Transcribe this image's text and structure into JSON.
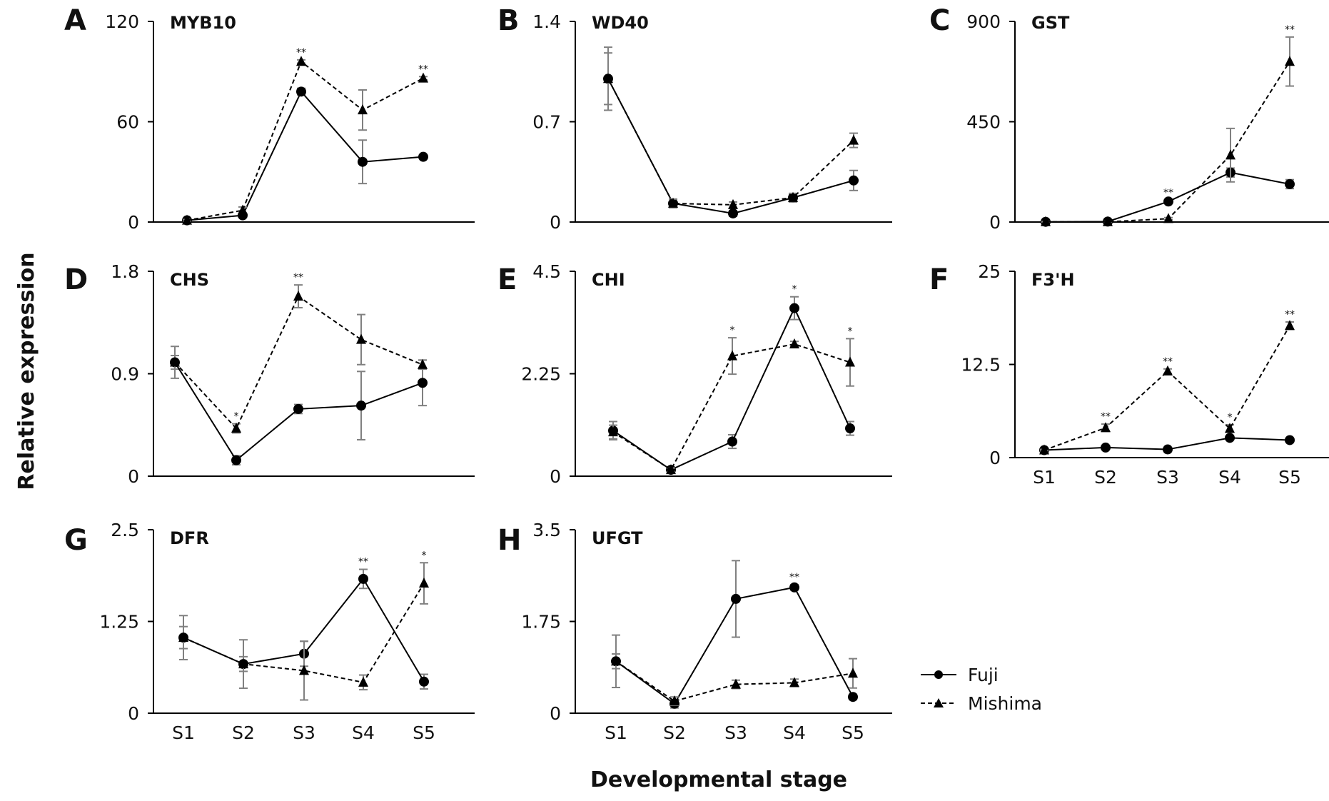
{
  "figure": {
    "ylabel": "Relative expression",
    "xlabel": "Developmental stage",
    "legend": [
      {
        "name": "Fuji",
        "marker": "circle",
        "line": "solid"
      },
      {
        "name": "Mishima",
        "marker": "triangle",
        "line": "dashed"
      }
    ],
    "colors": {
      "line": "#000000",
      "error_bar": "#808080",
      "text": "#111111"
    }
  },
  "chart_data": [
    {
      "panel": "A",
      "title": "MYB10",
      "type": "line",
      "categories": [
        "S1",
        "S2",
        "S3",
        "S4",
        "S5"
      ],
      "show_x_ticks": false,
      "yticks": [
        "0",
        "60",
        "120"
      ],
      "ylim": [
        0,
        120
      ],
      "series": [
        {
          "name": "Fuji",
          "values": [
            1,
            4,
            78,
            36,
            39
          ],
          "errors": [
            0.5,
            1,
            2,
            13,
            1
          ]
        },
        {
          "name": "Mishima",
          "values": [
            1,
            7,
            96,
            67,
            86
          ],
          "errors": [
            0.5,
            2,
            1,
            12,
            1
          ]
        }
      ],
      "significance": [
        "",
        "",
        "**",
        "",
        "**"
      ]
    },
    {
      "panel": "B",
      "title": "WD40",
      "type": "line",
      "categories": [
        "S1",
        "S2",
        "S3",
        "S4",
        "S5"
      ],
      "show_x_ticks": false,
      "yticks": [
        "0",
        "0.7",
        "1.4"
      ],
      "ylim": [
        0,
        1.4
      ],
      "series": [
        {
          "name": "Fuji",
          "values": [
            1.0,
            0.13,
            0.06,
            0.17,
            0.29
          ],
          "errors": [
            0.18,
            0.03,
            0.02,
            0.02,
            0.07
          ]
        },
        {
          "name": "Mishima",
          "values": [
            1.0,
            0.13,
            0.12,
            0.17,
            0.57
          ],
          "errors": [
            0.22,
            0.03,
            0.02,
            0.03,
            0.05
          ]
        }
      ],
      "significance": [
        "",
        "",
        "",
        "",
        ""
      ]
    },
    {
      "panel": "C",
      "title": "GST",
      "type": "line",
      "categories": [
        "S1",
        "S2",
        "S3",
        "S4",
        "S5"
      ],
      "show_x_ticks": false,
      "yticks": [
        "0",
        "450",
        "900"
      ],
      "ylim": [
        0,
        900
      ],
      "series": [
        {
          "name": "Fuji",
          "values": [
            1,
            2,
            92,
            222,
            170
          ],
          "errors": [
            1,
            1,
            5,
            20,
            20
          ]
        },
        {
          "name": "Mishima",
          "values": [
            1,
            1,
            15,
            300,
            720
          ],
          "errors": [
            1,
            1,
            5,
            120,
            110
          ]
        }
      ],
      "significance": [
        "",
        "",
        "**",
        "",
        "**"
      ]
    },
    {
      "panel": "D",
      "title": "CHS",
      "type": "line",
      "categories": [
        "S1",
        "S2",
        "S3",
        "S4",
        "S5"
      ],
      "show_x_ticks": false,
      "yticks": [
        "0",
        "0.9",
        "1.8"
      ],
      "ylim": [
        0,
        1.8
      ],
      "series": [
        {
          "name": "Fuji",
          "values": [
            1.0,
            0.14,
            0.59,
            0.62,
            0.82
          ],
          "errors": [
            0.06,
            0.04,
            0.04,
            0.3,
            0.2
          ]
        },
        {
          "name": "Mishima",
          "values": [
            1.0,
            0.42,
            1.58,
            1.2,
            0.98
          ],
          "errors": [
            0.14,
            0.04,
            0.1,
            0.22,
            0.04
          ]
        }
      ],
      "significance": [
        "",
        "*",
        "**",
        "",
        ""
      ]
    },
    {
      "panel": "E",
      "title": "CHI",
      "type": "line",
      "categories": [
        "S1",
        "S2",
        "S3",
        "S4",
        "S5"
      ],
      "show_x_ticks": false,
      "yticks": [
        "0",
        "2.25",
        "4.5"
      ],
      "ylim": [
        0,
        4.5
      ],
      "series": [
        {
          "name": "Fuji",
          "values": [
            1.0,
            0.14,
            0.76,
            3.69,
            1.05
          ],
          "errors": [
            0.2,
            0.04,
            0.15,
            0.25,
            0.15
          ]
        },
        {
          "name": "Mishima",
          "values": [
            0.97,
            0.14,
            2.64,
            2.9,
            2.5
          ],
          "errors": [
            0.15,
            0.04,
            0.4,
            0.06,
            0.52
          ]
        }
      ],
      "significance": [
        "",
        "",
        "*",
        "*",
        "*"
      ]
    },
    {
      "panel": "F",
      "title": "F3'H",
      "type": "line",
      "categories": [
        "S1",
        "S2",
        "S3",
        "S4",
        "S5"
      ],
      "show_x_ticks": true,
      "yticks": [
        "0",
        "12.5",
        "25"
      ],
      "ylim": [
        0,
        25
      ],
      "series": [
        {
          "name": "Fuji",
          "values": [
            1.0,
            1.35,
            1.1,
            2.65,
            2.35
          ],
          "errors": [
            0.1,
            0.2,
            0.1,
            0.2,
            0.2
          ]
        },
        {
          "name": "Mishima",
          "values": [
            1.0,
            4.0,
            11.6,
            3.9,
            17.7
          ],
          "errors": [
            0.1,
            0.5,
            0.3,
            0.5,
            0.5
          ]
        }
      ],
      "significance": [
        "",
        "**",
        "**",
        "*",
        "**"
      ]
    },
    {
      "panel": "G",
      "title": "DFR",
      "type": "line",
      "categories": [
        "S1",
        "S2",
        "S3",
        "S4",
        "S5"
      ],
      "show_x_ticks": true,
      "yticks": [
        "0",
        "1.25",
        "2.5"
      ],
      "ylim": [
        0,
        2.5
      ],
      "series": [
        {
          "name": "Fuji",
          "values": [
            1.03,
            0.67,
            0.81,
            1.83,
            0.43
          ],
          "errors": [
            0.15,
            0.33,
            0.17,
            0.13,
            0.1
          ]
        },
        {
          "name": "Mishima",
          "values": [
            1.03,
            0.67,
            0.58,
            0.42,
            1.77
          ],
          "errors": [
            0.3,
            0.1,
            0.4,
            0.1,
            0.28
          ]
        }
      ],
      "significance": [
        "",
        "",
        "",
        "**",
        "*"
      ]
    },
    {
      "panel": "H",
      "title": "UFGT",
      "type": "line",
      "categories": [
        "S1",
        "S2",
        "S3",
        "S4",
        "S5"
      ],
      "show_x_ticks": true,
      "yticks": [
        "0",
        "1.75",
        "3.5"
      ],
      "ylim": [
        0,
        3.5
      ],
      "series": [
        {
          "name": "Fuji",
          "values": [
            0.99,
            0.18,
            2.18,
            2.4,
            0.31
          ],
          "errors": [
            0.5,
            0.08,
            0.73,
            0.05,
            0.05
          ]
        },
        {
          "name": "Mishima",
          "values": [
            0.99,
            0.23,
            0.55,
            0.58,
            0.76
          ],
          "errors": [
            0.14,
            0.08,
            0.08,
            0.07,
            0.28
          ]
        }
      ],
      "significance": [
        "",
        "",
        "",
        "**",
        ""
      ]
    }
  ]
}
